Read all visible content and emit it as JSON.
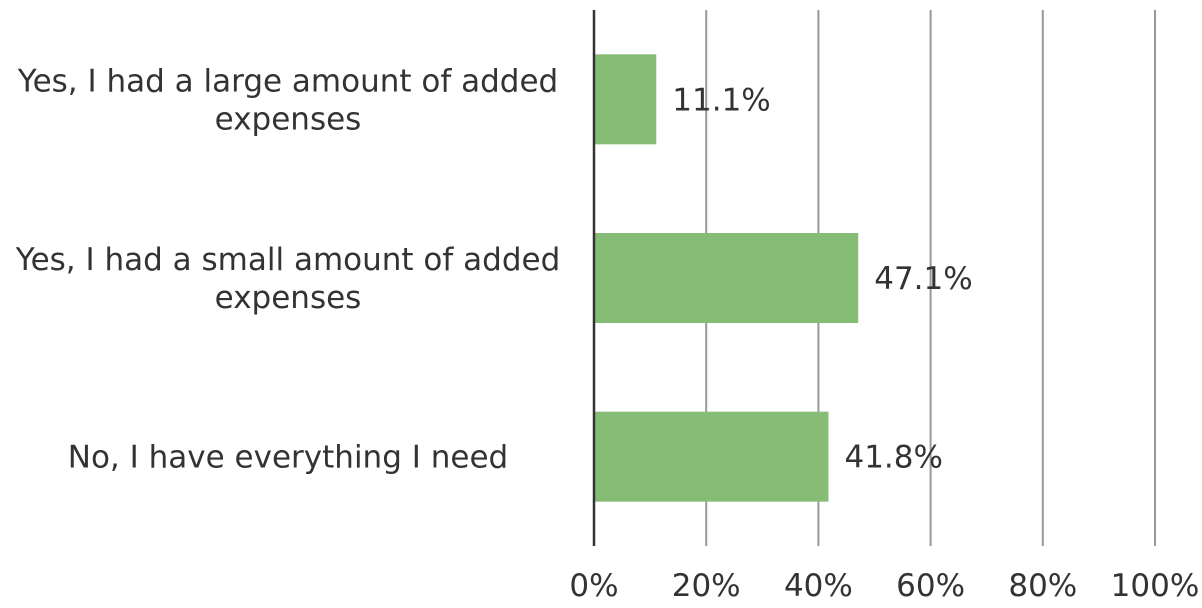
{
  "chart_data": {
    "type": "bar",
    "orientation": "horizontal",
    "categories": [
      "Yes, I had a large amount of added expenses",
      "Yes, I had a small amount of added expenses",
      "No, I have everything I need"
    ],
    "category_lines": [
      [
        "Yes, I had a large amount of added",
        "expenses"
      ],
      [
        "Yes, I had a small amount of added",
        "expenses"
      ],
      [
        "No, I have everything I need"
      ]
    ],
    "values": [
      11.1,
      47.1,
      41.8
    ],
    "data_labels": [
      "11.1%",
      "47.1%",
      "41.8%"
    ],
    "xlim": [
      0,
      100
    ],
    "x_ticks": [
      0,
      20,
      40,
      60,
      80,
      100
    ],
    "x_tick_labels": [
      "0%",
      "20%",
      "40%",
      "60%",
      "80%",
      "100%"
    ],
    "grid": true,
    "legend": "none",
    "title": "",
    "xlabel": "",
    "ylabel": "",
    "colors": {
      "bar": "#86bc75",
      "grid": "#999999",
      "axis": "#333333",
      "text": "#333333"
    }
  }
}
